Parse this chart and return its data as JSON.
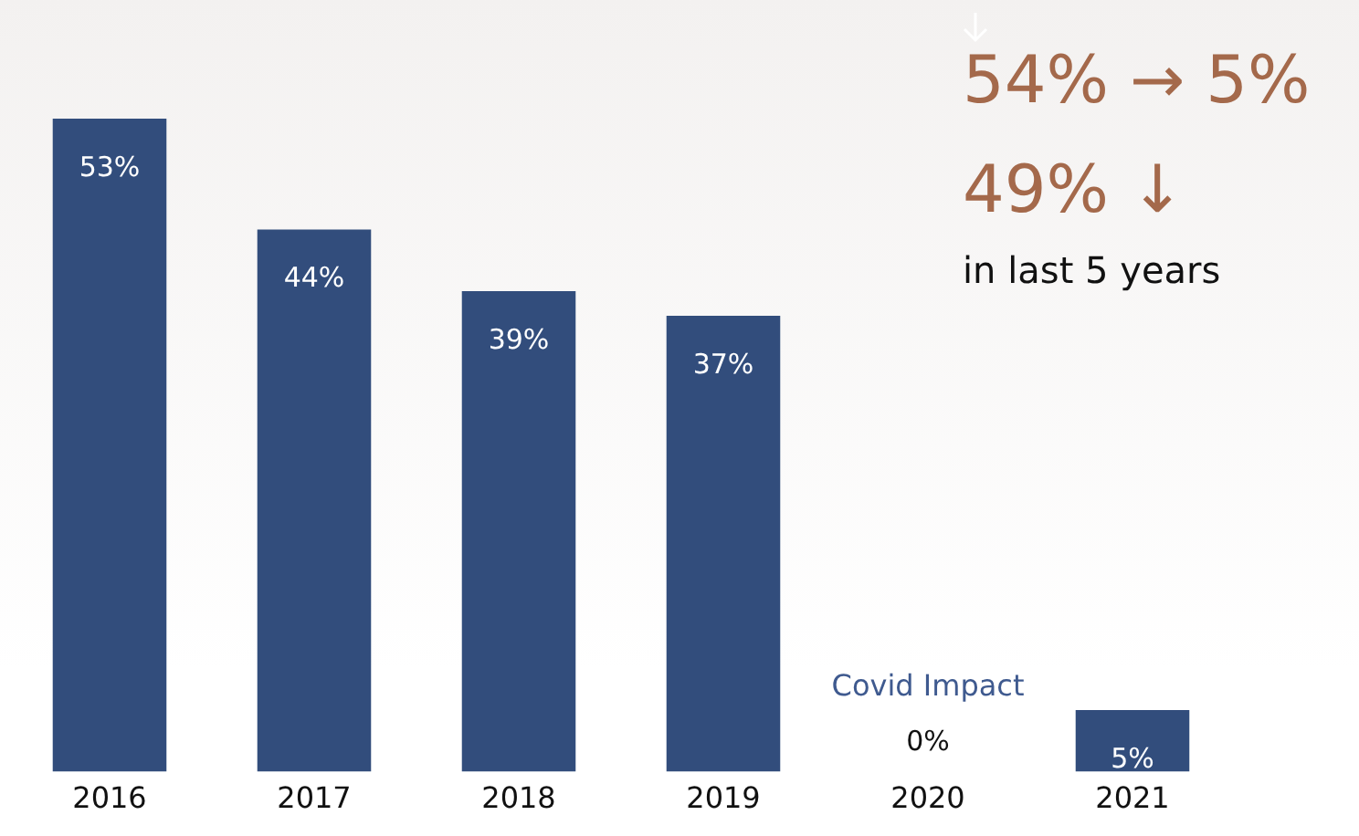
{
  "chart_data": {
    "type": "bar",
    "categories": [
      "2016",
      "2017",
      "2018",
      "2019",
      "2020",
      "2021"
    ],
    "values": [
      53,
      44,
      39,
      37,
      0,
      5
    ],
    "value_labels": [
      "53%",
      "44%",
      "39%",
      "37%",
      "0%",
      "5%"
    ],
    "color": "#324d7c",
    "grid": false,
    "legend": false,
    "tick_labels": "x",
    "annotations": [
      {
        "text": "Covid Impact",
        "x": "2020",
        "y": 0
      },
      "54% → 5%",
      "49% ↓",
      "in last 5 years"
    ]
  }
}
